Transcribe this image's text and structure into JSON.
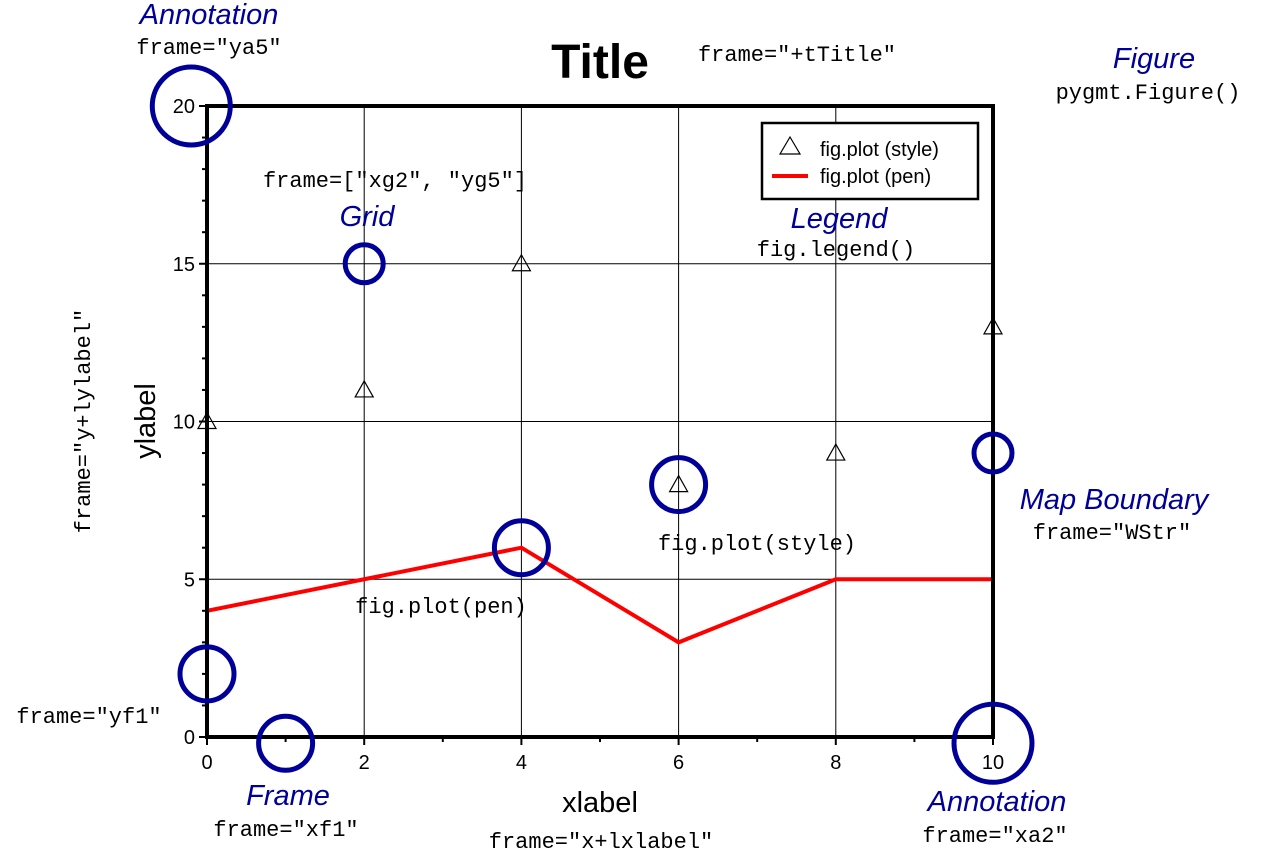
{
  "chart_data": {
    "type": "scatter+line",
    "title": "Title",
    "xlabel": "xlabel",
    "ylabel": "ylabel",
    "xlim": [
      0,
      10
    ],
    "ylim": [
      0,
      20
    ],
    "x_ticks": [
      "0",
      "2",
      "4",
      "6",
      "8",
      "10"
    ],
    "y_ticks": [
      "0",
      "5",
      "10",
      "15",
      "20"
    ],
    "grid": {
      "x_interval": 2,
      "y_interval": 5
    },
    "frame_interval": {
      "x": 1,
      "y": 1
    },
    "legend_position": "top-right",
    "series": [
      {
        "name": "fig.plot (style)",
        "kind": "scatter",
        "marker": "triangle",
        "color": "#000000",
        "x": [
          0,
          2,
          4,
          6,
          8,
          10
        ],
        "y": [
          10,
          11,
          15,
          8,
          9,
          13
        ]
      },
      {
        "name": "fig.plot (pen)",
        "kind": "line",
        "color": "#ff0000",
        "x": [
          0,
          2,
          4,
          6,
          8,
          10
        ],
        "y": [
          4,
          5,
          6,
          3,
          5,
          5
        ]
      }
    ],
    "highlight_circles": [
      {
        "x": -0.2,
        "y": 20,
        "size": "large"
      },
      {
        "x": 2,
        "y": 15,
        "size": "small"
      },
      {
        "x": 4,
        "y": 6,
        "size": "medium"
      },
      {
        "x": 6,
        "y": 8,
        "size": "medium"
      },
      {
        "x": 10,
        "y": 9,
        "size": "small"
      },
      {
        "x": 0,
        "y": 2,
        "size": "medium"
      },
      {
        "x": 1,
        "y": -0.2,
        "size": "medium"
      },
      {
        "x": 10,
        "y": -0.2,
        "size": "large"
      }
    ],
    "highlight_color": "#000099"
  },
  "annotations": {
    "y_annotation": {
      "label": "Annotation",
      "code": "frame=\"ya5\""
    },
    "title_code": "frame=\"+tTitle\"",
    "figure": {
      "label": "Figure",
      "code": "pygmt.Figure()"
    },
    "grid": {
      "label": "Grid",
      "code": "frame=[\"xg2\", \"yg5\"]"
    },
    "legend": {
      "label": "Legend",
      "code": "fig.legend()"
    },
    "ylabel_code": "frame=\"y+lylabel\"",
    "map_boundary": {
      "label": "Map Boundary",
      "code": "frame=\"WStr\""
    },
    "style_code": "fig.plot(style)",
    "pen_code": "fig.plot(pen)",
    "yframe_code": "frame=\"yf1\"",
    "frame": {
      "label": "Frame",
      "code": "frame=\"xf1\""
    },
    "xlabel_code": "frame=\"x+lxlabel\"",
    "x_annotation": {
      "label": "Annotation",
      "code": "frame=\"xa2\""
    }
  }
}
